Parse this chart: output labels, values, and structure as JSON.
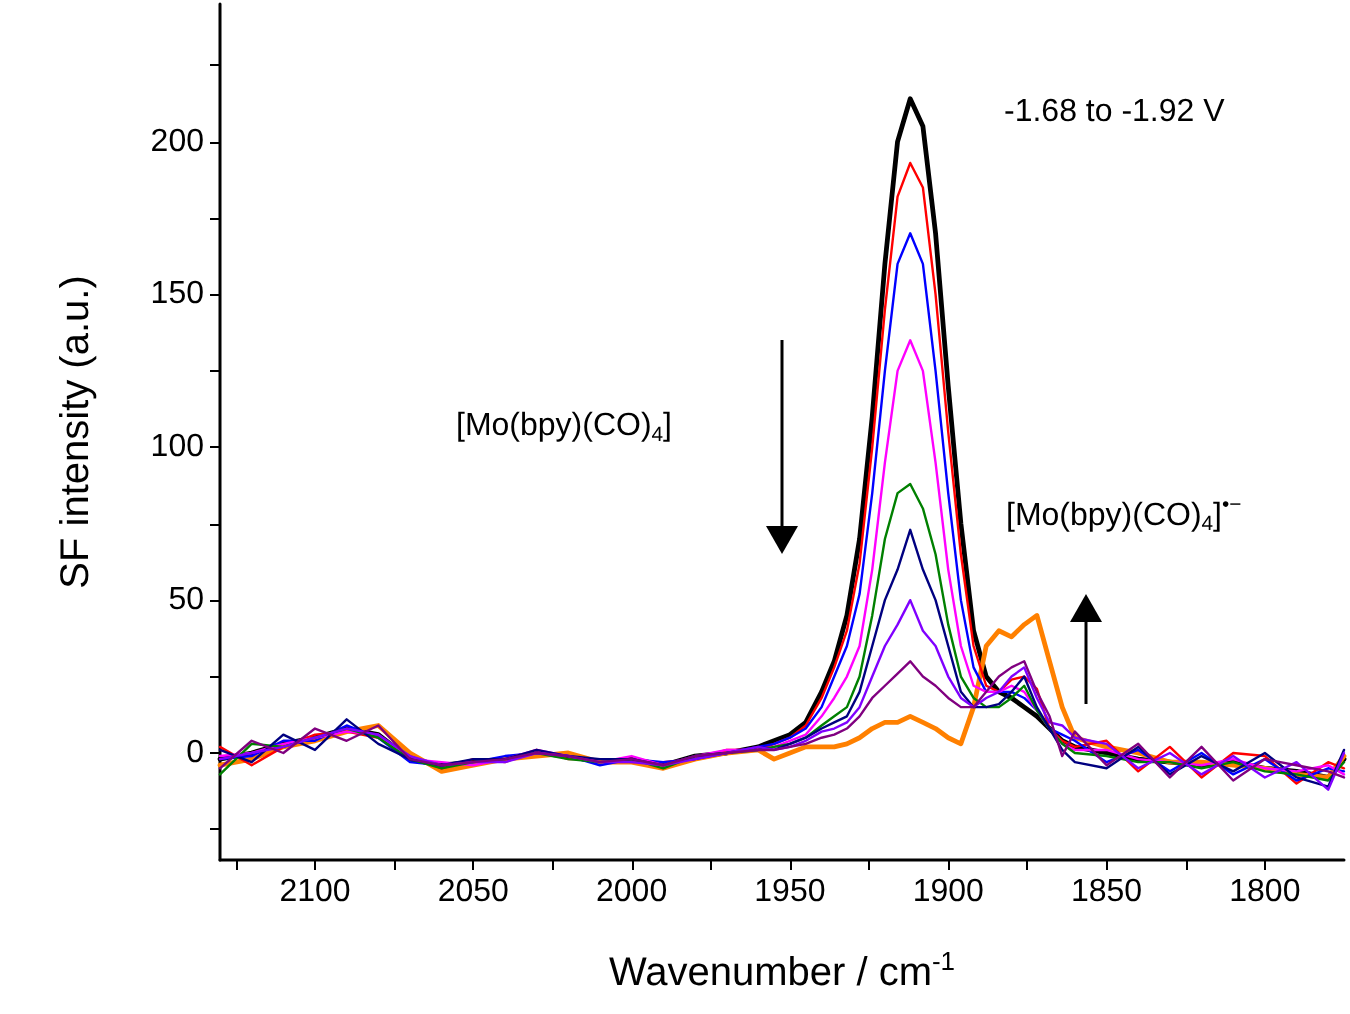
{
  "chart_data": {
    "type": "line",
    "xlabel": "Wavenumber / cm$^{-1}$",
    "ylabel": "SF intensity (a.u.)",
    "annotations": [
      "-1.68 to -1.92 V",
      "[Mo(bpy)(CO)$_{4}$]",
      "[Mo(bpy)(CO)$_{4}$]$^{•−}$"
    ],
    "x": [
      2130,
      2120,
      2110,
      2100,
      2090,
      2080,
      2070,
      2060,
      2050,
      2040,
      2030,
      2020,
      2010,
      2000,
      1990,
      1980,
      1970,
      1960,
      1955,
      1950,
      1945,
      1940,
      1936,
      1932,
      1928,
      1924,
      1920,
      1916,
      1912,
      1908,
      1904,
      1900,
      1896,
      1892,
      1888,
      1884,
      1880,
      1876,
      1872,
      1868,
      1864,
      1860,
      1850,
      1840,
      1830,
      1820,
      1810,
      1800,
      1790,
      1780,
      1775
    ],
    "series": [
      {
        "color": "#000000",
        "values": [
          -2,
          0,
          3,
          5,
          8,
          6,
          -2,
          -4,
          -3,
          -2,
          0,
          -1,
          -3,
          -2,
          -4,
          -1,
          0,
          2,
          4,
          6,
          10,
          20,
          30,
          45,
          70,
          110,
          160,
          200,
          214,
          205,
          170,
          120,
          75,
          40,
          25,
          20,
          18,
          15,
          12,
          8,
          4,
          2,
          0,
          -2,
          -3,
          -4,
          -3,
          -5,
          -6,
          -8,
          -2
        ]
      },
      {
        "color": "#ff0000",
        "values": [
          2,
          -4,
          2,
          6,
          7,
          5,
          -1,
          -5,
          -2,
          -3,
          1,
          -2,
          -2,
          -3,
          -3,
          -2,
          1,
          1,
          3,
          5,
          9,
          18,
          28,
          40,
          62,
          100,
          145,
          182,
          193,
          185,
          150,
          105,
          65,
          35,
          22,
          20,
          24,
          25,
          21,
          8,
          4,
          2,
          4,
          -6,
          2,
          -8,
          0,
          -1,
          -10,
          -3,
          -5
        ]
      },
      {
        "color": "#0000ff",
        "values": [
          -2,
          -1,
          4,
          4,
          9,
          5,
          -3,
          -4,
          -3,
          -1,
          0,
          -1,
          -4,
          -2,
          -3,
          -2,
          0,
          2,
          3,
          5,
          8,
          15,
          25,
          35,
          52,
          85,
          125,
          160,
          170,
          160,
          125,
          85,
          50,
          28,
          20,
          20,
          20,
          18,
          14,
          8,
          6,
          4,
          -3,
          1,
          -6,
          0,
          -7,
          -2,
          -9,
          -5,
          -6
        ]
      },
      {
        "color": "#ff00ff",
        "values": [
          -1,
          0,
          3,
          5,
          7,
          6,
          -2,
          -3,
          -4,
          -2,
          1,
          -1,
          -3,
          -1,
          -4,
          -1,
          1,
          1,
          2,
          4,
          6,
          12,
          18,
          25,
          35,
          60,
          95,
          125,
          135,
          125,
          95,
          60,
          35,
          22,
          20,
          20,
          22,
          20,
          14,
          8,
          3,
          1,
          1,
          -2,
          -3,
          -4,
          -2,
          -5,
          -6,
          -4,
          -7
        ]
      },
      {
        "color": "#008000",
        "values": [
          -7,
          3,
          2,
          5,
          8,
          5,
          -2,
          -5,
          -3,
          -2,
          0,
          -2,
          -3,
          -2,
          -5,
          -1,
          0,
          1,
          2,
          3,
          5,
          9,
          12,
          15,
          25,
          45,
          70,
          85,
          88,
          80,
          65,
          42,
          25,
          18,
          15,
          15,
          18,
          22,
          14,
          8,
          3,
          0,
          -1,
          -3,
          -3,
          -5,
          -3,
          -6,
          -7,
          -9,
          -3
        ]
      },
      {
        "color": "#000080",
        "values": [
          1,
          -3,
          6,
          1,
          11,
          3,
          -2,
          -4,
          -2,
          -2,
          1,
          -1,
          -2,
          -2,
          -4,
          -1,
          0,
          2,
          1,
          3,
          5,
          8,
          10,
          12,
          20,
          35,
          50,
          60,
          73,
          60,
          50,
          35,
          20,
          15,
          15,
          16,
          20,
          25,
          15,
          8,
          1,
          -3,
          -5,
          2,
          -7,
          -1,
          -6,
          0,
          -8,
          -11,
          1
        ]
      },
      {
        "color": "#8000ff",
        "values": [
          -2,
          0,
          2,
          5,
          8,
          6,
          -1,
          -4,
          -3,
          -3,
          0,
          -1,
          -3,
          -3,
          -4,
          -2,
          0,
          2,
          1,
          2,
          4,
          7,
          8,
          10,
          15,
          25,
          35,
          42,
          50,
          40,
          35,
          25,
          18,
          15,
          18,
          20,
          25,
          28,
          18,
          10,
          9,
          5,
          3,
          -5,
          0,
          -7,
          -1,
          -8,
          -3,
          -12,
          0
        ]
      },
      {
        "color": "#800080",
        "values": [
          -5,
          4,
          0,
          8,
          4,
          9,
          -2,
          -4,
          -3,
          -2,
          0,
          -1,
          -3,
          -2,
          -4,
          -1,
          0,
          1,
          1,
          2,
          3,
          5,
          6,
          8,
          12,
          18,
          22,
          26,
          30,
          25,
          22,
          18,
          15,
          15,
          20,
          25,
          28,
          30,
          20,
          12,
          -1,
          7,
          -4,
          3,
          -8,
          2,
          -9,
          -2,
          -4,
          -6,
          -8
        ]
      },
      {
        "color": "#ff8000",
        "values": [
          -4,
          -2,
          2,
          4,
          7,
          9,
          0,
          -6,
          -4,
          -2,
          -1,
          0,
          -3,
          -3,
          -5,
          -2,
          0,
          1,
          -2,
          0,
          2,
          2,
          2,
          3,
          5,
          8,
          10,
          10,
          12,
          10,
          8,
          5,
          3,
          15,
          35,
          40,
          38,
          42,
          45,
          30,
          15,
          5,
          2,
          0,
          -3,
          -3,
          -4,
          -5,
          -7,
          -8,
          -1
        ]
      }
    ],
    "xlim": [
      2130,
      1775
    ],
    "ylim": [
      -35,
      245
    ],
    "xticks": [
      {
        "value": 2125,
        "label": null
      },
      2100,
      {
        "value": 2075,
        "label": null
      },
      2050,
      {
        "value": 2025,
        "label": null
      },
      2000,
      {
        "value": 1975,
        "label": null
      },
      1950,
      {
        "value": 1925,
        "label": null
      },
      1900,
      {
        "value": 1875,
        "label": null
      },
      1850,
      {
        "value": 1825,
        "label": null
      },
      1800
    ],
    "yticks": [
      {
        "value": -25,
        "label": null
      },
      0,
      {
        "value": 25,
        "label": null
      },
      50,
      {
        "value": 75,
        "label": null
      },
      100,
      {
        "value": 125,
        "label": null
      },
      150,
      {
        "value": 175,
        "label": null
      },
      200,
      {
        "value": 225,
        "label": null
      }
    ],
    "grid": false,
    "marker": "none",
    "line_style": "solid"
  }
}
